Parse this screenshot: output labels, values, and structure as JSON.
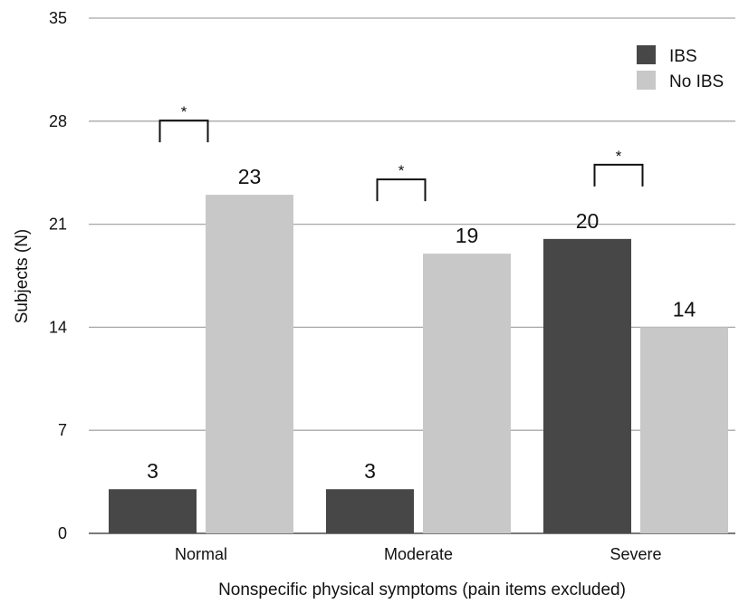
{
  "chart_data": {
    "type": "bar",
    "categories": [
      "Normal",
      "Moderate",
      "Severe"
    ],
    "series": [
      {
        "name": "IBS",
        "values": [
          3,
          3,
          20
        ],
        "color": "#474747"
      },
      {
        "name": "No IBS",
        "values": [
          23,
          19,
          14
        ],
        "color": "#c8c8c8"
      }
    ],
    "xlabel": "Nonspecific physical symptoms (pain items excluded)",
    "ylabel": "Subjects (N)",
    "ylim": [
      0,
      35
    ],
    "yticks": [
      "0",
      "7",
      "14",
      "21",
      "28",
      "35"
    ],
    "grid": true,
    "legend_position": "top-right",
    "annotations": [
      {
        "category": "Normal",
        "text": "*"
      },
      {
        "category": "Moderate",
        "text": "*"
      },
      {
        "category": "Severe",
        "text": "*"
      }
    ]
  }
}
